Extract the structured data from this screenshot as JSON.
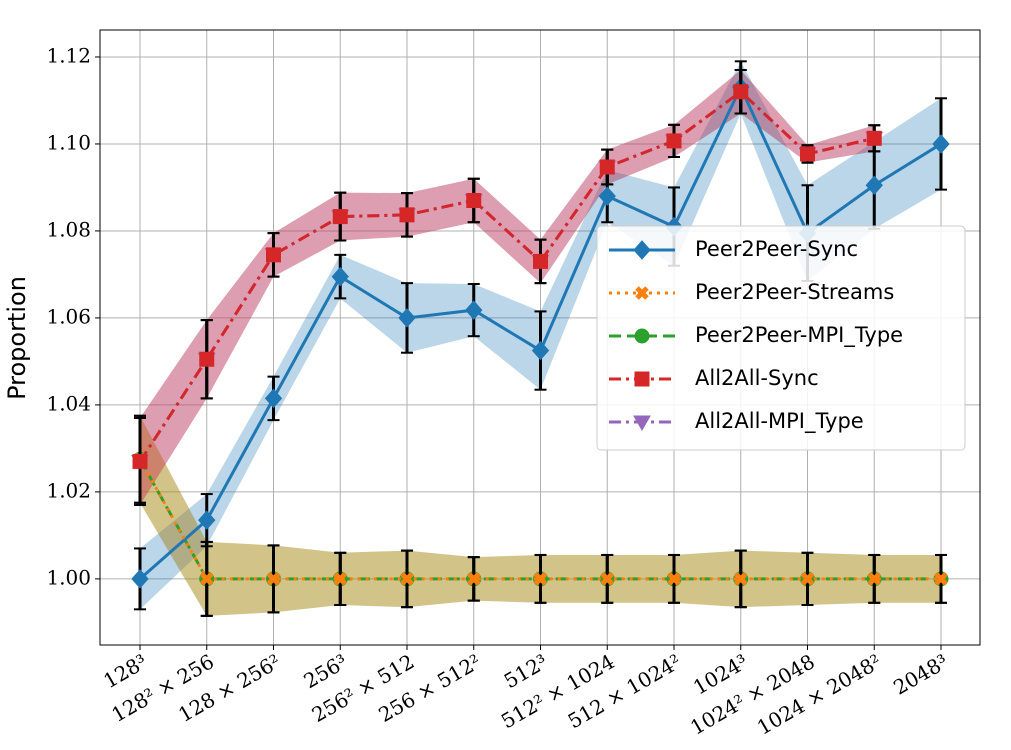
{
  "chart_data": {
    "type": "line",
    "y_label": "Proportion",
    "categories": [
      "128³",
      "128² × 256",
      "128 × 256²",
      "256³",
      "256² × 512",
      "256 × 512²",
      "512³",
      "512² × 1024",
      "512 × 1024²",
      "1024³",
      "1024² × 2048",
      "1024 × 2048²",
      "2048³"
    ],
    "series": [
      {
        "name": "Peer2Peer-MPI_Type",
        "color": "#2ca02c",
        "marker": "circle",
        "dash": "dashed",
        "values": [
          1.0275,
          1,
          1,
          1,
          1,
          1,
          1,
          1,
          1,
          1,
          1,
          1,
          1
        ],
        "errors": [
          0.01,
          0.0085,
          0.0077,
          0.006,
          0.0065,
          0.005,
          0.0055,
          0.0055,
          0.0055,
          0.0065,
          0.006,
          0.0055,
          0.0055
        ]
      },
      {
        "name": "All2All-MPI_Type",
        "color": "#9467bd",
        "marker": "triangle",
        "dash": "dashdot",
        "values": [
          1.027,
          1.0505,
          1.0745,
          1.0833,
          1.0837,
          1.087,
          1.073,
          1.0947,
          1.1007,
          1.112,
          1.0977,
          1.1013,
          null
        ],
        "errors": [
          0.01,
          0.009,
          0.005,
          0.0055,
          0.005,
          0.005,
          0.005,
          0.004,
          0.0037,
          0.005,
          0.002,
          0.003,
          null
        ]
      },
      {
        "name": "Peer2Peer-Sync",
        "color": "#1f77b4",
        "marker": "diamond",
        "dash": "solid",
        "values": [
          1,
          1.0135,
          1.0415,
          1.0695,
          1.06,
          1.0618,
          1.0525,
          1.088,
          1.081,
          1.113,
          1.0795,
          1.0905,
          1.1
        ],
        "errors": [
          0.007,
          0.006,
          0.005,
          0.005,
          0.008,
          0.006,
          0.009,
          0.006,
          0.009,
          0.006,
          0.011,
          0.01,
          0.0105
        ]
      },
      {
        "name": "Peer2Peer-Streams",
        "color": "#ff7f0e",
        "marker": "x",
        "dash": "dotted",
        "values": [
          1.0275,
          1,
          1,
          1,
          1,
          1,
          1,
          1,
          1,
          1,
          1,
          1,
          1
        ],
        "errors": [
          0.01,
          0.0085,
          0.0077,
          0.006,
          0.0065,
          0.005,
          0.0055,
          0.0055,
          0.0055,
          0.0065,
          0.006,
          0.0055,
          0.0055
        ]
      },
      {
        "name": "All2All-Sync",
        "color": "#d62728",
        "marker": "square",
        "dash": "dashdot",
        "values": [
          1.027,
          1.0505,
          1.0745,
          1.0833,
          1.0837,
          1.087,
          1.073,
          1.0947,
          1.1007,
          1.112,
          1.0977,
          1.1013,
          null
        ],
        "errors": [
          0.01,
          0.009,
          0.005,
          0.0055,
          0.005,
          0.005,
          0.005,
          0.004,
          0.0037,
          0.005,
          0.002,
          0.003,
          null
        ]
      }
    ],
    "legend_order": [
      2,
      3,
      0,
      4,
      1
    ],
    "ylim": [
      0.9848,
      1.1262
    ],
    "yticks": [
      {
        "value": 1,
        "label": "1.00"
      },
      {
        "value": 1.02,
        "label": "1.02"
      },
      {
        "value": 1.04,
        "label": "1.04"
      },
      {
        "value": 1.06,
        "label": "1.06"
      },
      {
        "value": 1.08,
        "label": "1.08"
      },
      {
        "value": 1.1,
        "label": "1.10"
      },
      {
        "value": 1.12,
        "label": "1.12"
      }
    ],
    "grid": true,
    "legend": "center right"
  }
}
